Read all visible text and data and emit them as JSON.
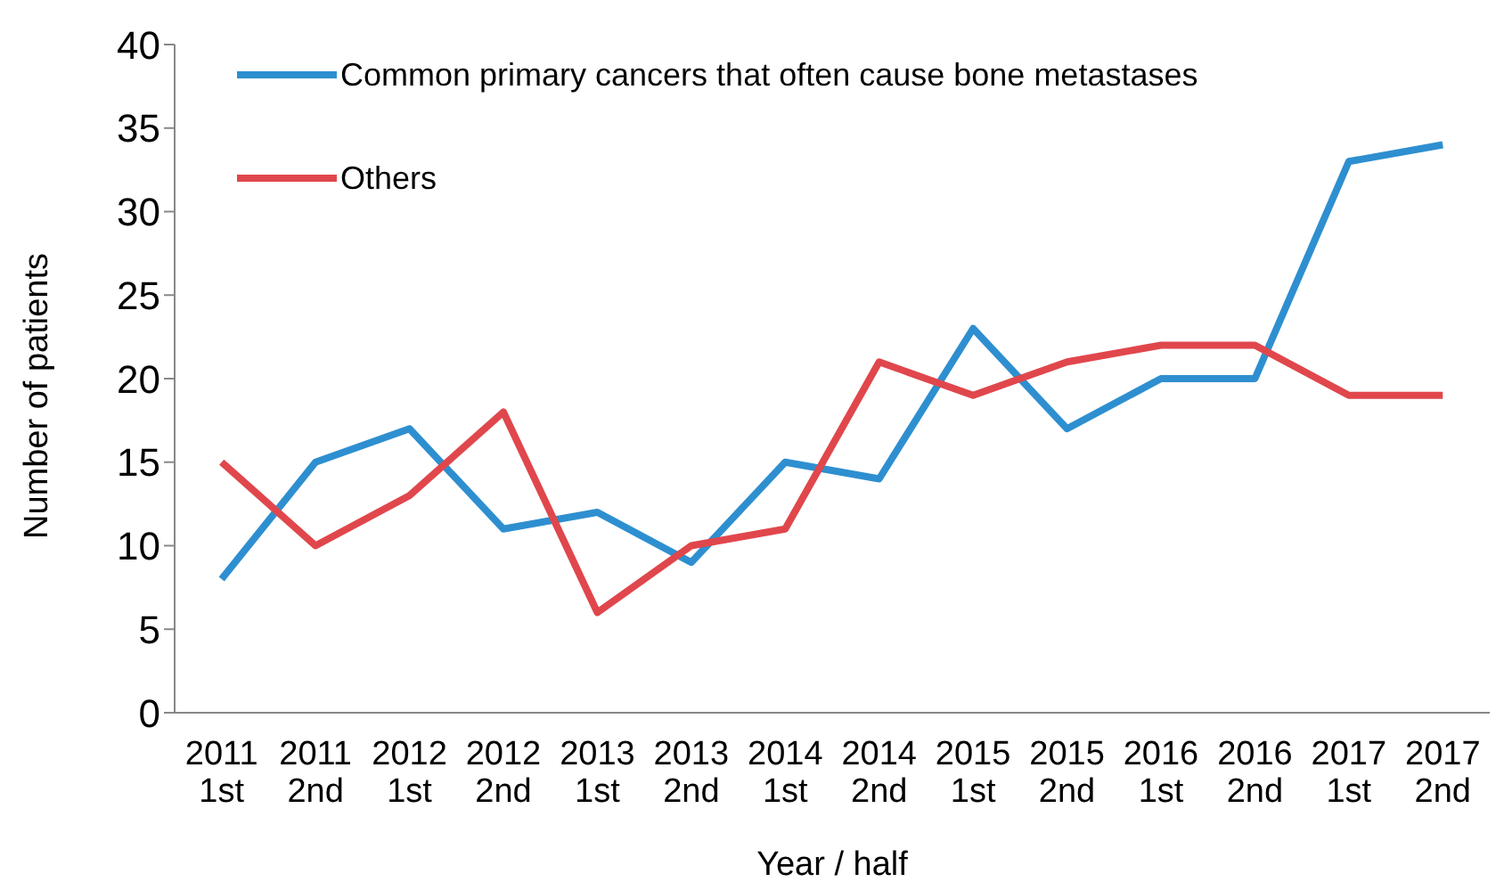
{
  "chart_data": {
    "type": "line",
    "xlabel": "Year / half",
    "ylabel": "Number of patients",
    "categories": [
      "2011\n1st",
      "2011\n2nd",
      "2012\n1st",
      "2012\n2nd",
      "2013\n1st",
      "2013\n2nd",
      "2014\n1st",
      "2014\n2nd",
      "2015\n1st",
      "2015\n2nd",
      "2016\n1st",
      "2016\n2nd",
      "2017\n1st",
      "2017\n2nd"
    ],
    "series": [
      {
        "name": "Common primary cancers that often cause bone metastases",
        "color": "#2e8fd0",
        "values": [
          8,
          15,
          17,
          11,
          12,
          9,
          15,
          14,
          23,
          17,
          20,
          20,
          33,
          34
        ]
      },
      {
        "name": "Others",
        "color": "#e0474c",
        "values": [
          15,
          10,
          13,
          18,
          6,
          10,
          11,
          21,
          19,
          21,
          22,
          22,
          19,
          19
        ]
      }
    ],
    "ylim": [
      0,
      40
    ],
    "yticks": [
      0,
      5,
      10,
      15,
      20,
      25,
      30,
      35,
      40
    ],
    "grid": false,
    "legend": "top left",
    "marker": "none",
    "line_style": "solid"
  }
}
